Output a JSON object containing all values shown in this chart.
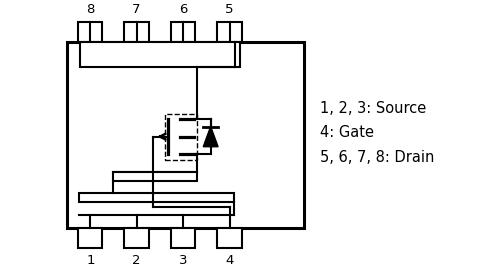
{
  "bg_color": "#ffffff",
  "line_color": "#000000",
  "lw": 1.5,
  "body_lw": 2.2,
  "fig_w": 4.84,
  "fig_h": 2.68,
  "legend_lines": [
    "1, 2, 3: Source",
    "4: Gate",
    "5, 6, 7, 8: Drain"
  ],
  "pin_labels_bottom": [
    "1",
    "2",
    "3",
    "4"
  ],
  "pin_labels_top": [
    "8",
    "7",
    "6",
    "5"
  ],
  "font_size": 9.5
}
